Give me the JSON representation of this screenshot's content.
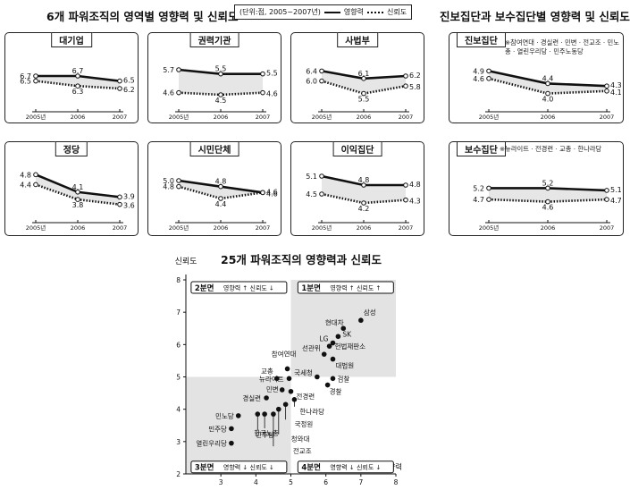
{
  "headers": {
    "left_title": "6개 파워조직의 영역별 영향력 및 신뢰도",
    "right_title": "진보집단과 보수집단별 영향력 및 신뢰도",
    "scatter_title": "25개 파워조직의 영향력과 신뢰도"
  },
  "legend": {
    "unit": "(단위:점, 2005~2007년)",
    "influence": "영향력",
    "trust": "신뢰도"
  },
  "notes": {
    "progressive": "※참여연대 · 경실련 · 민변 · 전교조 · 민노총 · 열린우리당 · 민주노동당",
    "conservative": "※뉴라이트 · 전경련 · 교총 · 한나라당"
  },
  "x_labels": [
    "2005년",
    "2006",
    "2007"
  ],
  "chart_data": [
    {
      "type": "line",
      "title": "대기업",
      "categories": [
        "2005년",
        "2006",
        "2007"
      ],
      "series": [
        {
          "name": "영향력",
          "values": [
            6.7,
            6.7,
            6.5
          ]
        },
        {
          "name": "신뢰도",
          "values": [
            6.5,
            6.3,
            6.2
          ]
        }
      ]
    },
    {
      "type": "line",
      "title": "권력기관",
      "categories": [
        "2005년",
        "2006",
        "2007"
      ],
      "series": [
        {
          "name": "영향력",
          "values": [
            5.7,
            5.5,
            5.5
          ]
        },
        {
          "name": "신뢰도",
          "values": [
            4.6,
            4.5,
            4.6
          ]
        }
      ]
    },
    {
      "type": "line",
      "title": "사법부",
      "categories": [
        "2005년",
        "2006",
        "2007"
      ],
      "series": [
        {
          "name": "영향력",
          "values": [
            6.4,
            6.1,
            6.2
          ]
        },
        {
          "name": "신뢰도",
          "values": [
            6.0,
            5.5,
            5.8
          ]
        }
      ]
    },
    {
      "type": "line",
      "title": "정당",
      "categories": [
        "2005년",
        "2006",
        "2007"
      ],
      "series": [
        {
          "name": "영향력",
          "values": [
            4.8,
            4.1,
            3.9
          ]
        },
        {
          "name": "신뢰도",
          "values": [
            4.4,
            3.8,
            3.6
          ]
        }
      ]
    },
    {
      "type": "line",
      "title": "시민단체",
      "categories": [
        "2005년",
        "2006",
        "2007"
      ],
      "series": [
        {
          "name": "영향력",
          "values": [
            5.0,
            4.8,
            4.6
          ]
        },
        {
          "name": "신뢰도",
          "values": [
            4.8,
            4.4,
            4.6
          ]
        }
      ]
    },
    {
      "type": "line",
      "title": "이익집단",
      "categories": [
        "2005년",
        "2006",
        "2007"
      ],
      "series": [
        {
          "name": "영향력",
          "values": [
            5.1,
            4.8,
            4.8
          ]
        },
        {
          "name": "신뢰도",
          "values": [
            4.5,
            4.2,
            4.3
          ]
        }
      ]
    },
    {
      "type": "line",
      "title": "진보집단",
      "categories": [
        "2005년",
        "2006",
        "2007"
      ],
      "series": [
        {
          "name": "영향력",
          "values": [
            4.9,
            4.4,
            4.3
          ]
        },
        {
          "name": "신뢰도",
          "values": [
            4.6,
            4.0,
            4.1
          ]
        }
      ]
    },
    {
      "type": "line",
      "title": "보수집단",
      "categories": [
        "2005년",
        "2006",
        "2007"
      ],
      "series": [
        {
          "name": "영향력",
          "values": [
            5.2,
            5.2,
            5.1
          ]
        },
        {
          "name": "신뢰도",
          "values": [
            4.7,
            4.6,
            4.7
          ]
        }
      ]
    },
    {
      "type": "scatter",
      "title": "25개 파워조직의 영향력과 신뢰도",
      "xlabel": "영향력",
      "ylabel": "신뢰도",
      "xlim": [
        2,
        8
      ],
      "ylim": [
        2,
        8
      ],
      "xticks": [
        3,
        4,
        5,
        6,
        7,
        8
      ],
      "yticks": [
        2,
        3,
        4,
        5,
        6,
        7,
        8
      ],
      "quadrants": [
        {
          "label": "1분면",
          "text": "영향력 ↑ 신뢰도 ↑"
        },
        {
          "label": "2분면",
          "text": "영향력 ↑ 신뢰도 ↓"
        },
        {
          "label": "3분면",
          "text": "영향력 ↓ 신뢰도 ↓"
        },
        {
          "label": "4분면",
          "text": "영향력 ↓ 신뢰도 ↓"
        }
      ],
      "points": [
        {
          "name": "삼성",
          "x": 7.0,
          "y": 6.75
        },
        {
          "name": "현대차",
          "x": 6.5,
          "y": 6.5
        },
        {
          "name": "SK",
          "x": 6.35,
          "y": 6.25
        },
        {
          "name": "LG",
          "x": 6.2,
          "y": 6.05
        },
        {
          "name": "헌법재판소",
          "x": 6.1,
          "y": 5.95
        },
        {
          "name": "선관위",
          "x": 5.95,
          "y": 5.7
        },
        {
          "name": "대법원",
          "x": 6.2,
          "y": 5.55
        },
        {
          "name": "국세청",
          "x": 5.75,
          "y": 5.0
        },
        {
          "name": "검찰",
          "x": 6.2,
          "y": 4.95
        },
        {
          "name": "경찰",
          "x": 6.05,
          "y": 4.75
        },
        {
          "name": "참여연대",
          "x": 4.9,
          "y": 5.25
        },
        {
          "name": "교총",
          "x": 4.6,
          "y": 4.95
        },
        {
          "name": "뉴라이트",
          "x": 4.95,
          "y": 4.95
        },
        {
          "name": "민변",
          "x": 4.75,
          "y": 4.6
        },
        {
          "name": "전경련",
          "x": 5.0,
          "y": 4.55
        },
        {
          "name": "경실련",
          "x": 4.3,
          "y": 4.35
        },
        {
          "name": "한나라당",
          "x": 5.1,
          "y": 4.3
        },
        {
          "name": "국정원",
          "x": 4.85,
          "y": 4.15
        },
        {
          "name": "청와대",
          "x": 4.65,
          "y": 4.0
        },
        {
          "name": "전교조",
          "x": 4.5,
          "y": 3.85
        },
        {
          "name": "한국노총",
          "x": 4.25,
          "y": 3.85
        },
        {
          "name": "민주당",
          "x": 4.05,
          "y": 3.85
        },
        {
          "name": "민노당",
          "x": 3.5,
          "y": 3.8
        },
        {
          "name": "민주당",
          "x": 3.3,
          "y": 3.4
        },
        {
          "name": "열린우리당",
          "x": 3.3,
          "y": 2.95
        }
      ]
    }
  ]
}
